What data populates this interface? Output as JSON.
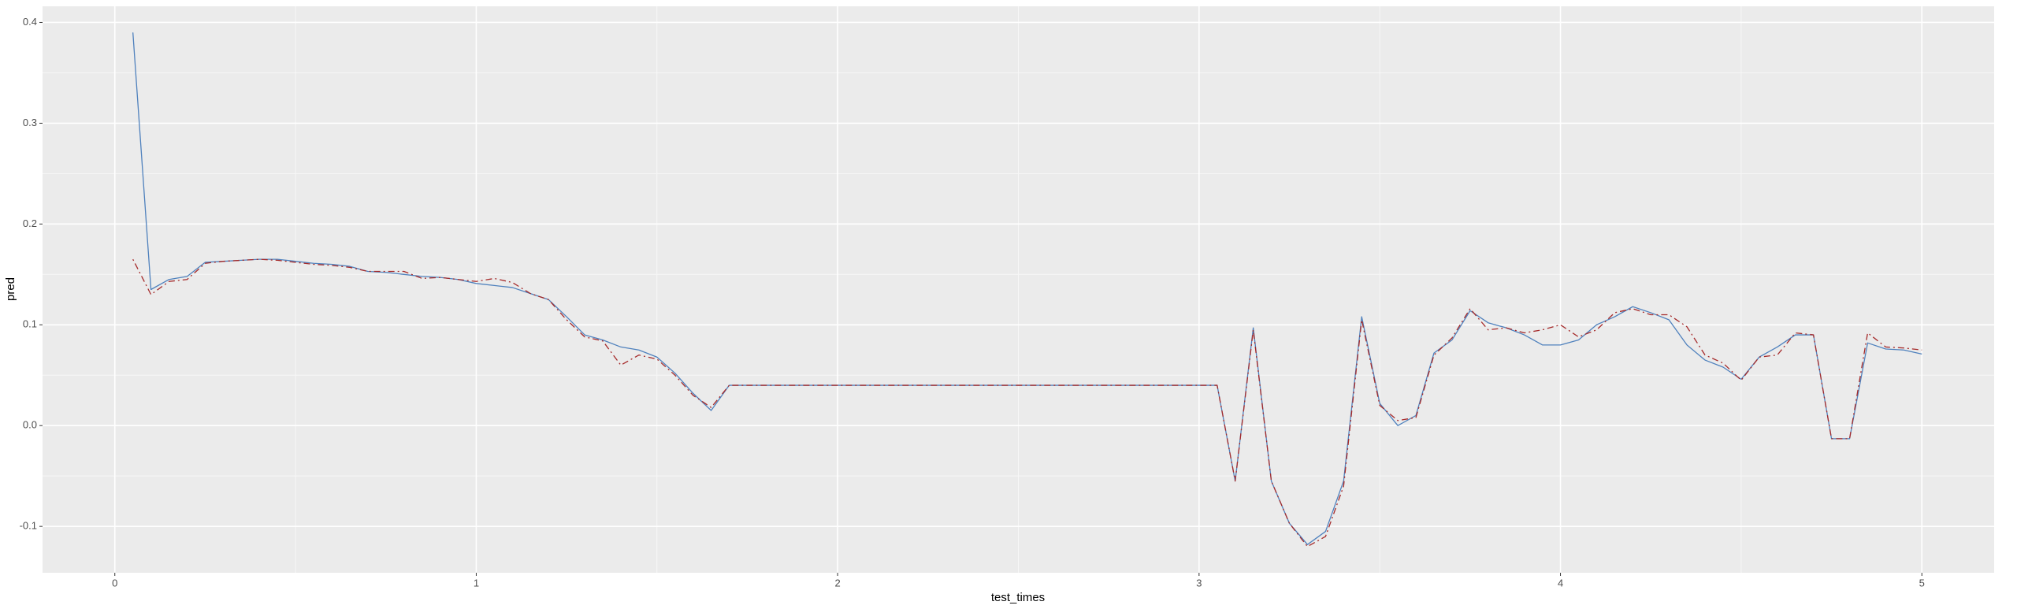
{
  "chart_data": {
    "type": "line",
    "x_label": "test_times",
    "y_label": "pred",
    "x": [
      0.05,
      0.1,
      0.15,
      0.2,
      0.25,
      0.3,
      0.35,
      0.4,
      0.45,
      0.5,
      0.55,
      0.6,
      0.65,
      0.7,
      0.75,
      0.8,
      0.85,
      0.9,
      0.95,
      1,
      1.05,
      1.1,
      1.15,
      1.2,
      1.25,
      1.3,
      1.35,
      1.4,
      1.45,
      1.5,
      1.55,
      1.6,
      1.65,
      1.7,
      1.75,
      1.8,
      1.85,
      1.9,
      1.95,
      2,
      2.05,
      2.1,
      2.15,
      2.2,
      2.25,
      2.3,
      2.35,
      2.4,
      2.45,
      2.5,
      2.55,
      2.6,
      2.65,
      2.7,
      2.75,
      2.8,
      2.85,
      2.9,
      2.95,
      3,
      3.05,
      3.1,
      3.15,
      3.2,
      3.25,
      3.3,
      3.35,
      3.4,
      3.45,
      3.5,
      3.55,
      3.6,
      3.65,
      3.7,
      3.75,
      3.8,
      3.85,
      3.9,
      3.95,
      4,
      4.05,
      4.1,
      4.15,
      4.2,
      4.25,
      4.3,
      4.35,
      4.4,
      4.45,
      4.5,
      4.55,
      4.6,
      4.65,
      4.7,
      4.75,
      4.8,
      4.85,
      4.9,
      4.95,
      5
    ],
    "series": [
      {
        "color": "#4f81bd",
        "dash": "solid",
        "values": [
          0.39,
          0.135,
          0.145,
          0.148,
          0.162,
          0.163,
          0.164,
          0.165,
          0.165,
          0.163,
          0.161,
          0.16,
          0.158,
          0.153,
          0.152,
          0.15,
          0.148,
          0.147,
          0.145,
          0.141,
          0.139,
          0.137,
          0.131,
          0.125,
          0.108,
          0.09,
          0.085,
          0.078,
          0.075,
          0.068,
          0.052,
          0.032,
          0.015,
          0.04,
          0.04,
          0.04,
          0.04,
          0.04,
          0.04,
          0.04,
          0.04,
          0.04,
          0.04,
          0.04,
          0.04,
          0.04,
          0.04,
          0.04,
          0.04,
          0.04,
          0.04,
          0.04,
          0.04,
          0.04,
          0.04,
          0.04,
          0.04,
          0.04,
          0.04,
          0.04,
          0.04,
          -0.055,
          0.097,
          -0.055,
          -0.097,
          -0.118,
          -0.105,
          -0.055,
          0.108,
          0.022,
          0,
          0.01,
          0.072,
          0.085,
          0.114,
          0.102,
          0.097,
          0.09,
          0.08,
          0.08,
          0.085,
          0.1,
          0.108,
          0.118,
          0.112,
          0.105,
          0.08,
          0.065,
          0.058,
          0.046,
          0.068,
          0.078,
          0.09,
          0.09,
          -0.013,
          -0.013,
          0.082,
          0.076,
          0.075,
          0.071
        ]
      },
      {
        "color": "#a52a2a",
        "dash": "dotdash",
        "values": [
          0.165,
          0.13,
          0.143,
          0.145,
          0.161,
          0.163,
          0.164,
          0.165,
          0.164,
          0.162,
          0.16,
          0.159,
          0.157,
          0.153,
          0.153,
          0.153,
          0.146,
          0.147,
          0.145,
          0.143,
          0.146,
          0.142,
          0.131,
          0.125,
          0.105,
          0.088,
          0.084,
          0.06,
          0.07,
          0.066,
          0.05,
          0.03,
          0.018,
          0.04,
          0.04,
          0.04,
          0.04,
          0.04,
          0.04,
          0.04,
          0.04,
          0.04,
          0.04,
          0.04,
          0.04,
          0.04,
          0.04,
          0.04,
          0.04,
          0.04,
          0.04,
          0.04,
          0.04,
          0.04,
          0.04,
          0.04,
          0.04,
          0.04,
          0.04,
          0.04,
          0.04,
          -0.055,
          0.095,
          -0.055,
          -0.097,
          -0.12,
          -0.11,
          -0.06,
          0.105,
          0.02,
          0.005,
          0.008,
          0.07,
          0.087,
          0.116,
          0.095,
          0.097,
          0.092,
          0.095,
          0.1,
          0.088,
          0.095,
          0.112,
          0.116,
          0.11,
          0.11,
          0.098,
          0.07,
          0.062,
          0.045,
          0.068,
          0.07,
          0.092,
          0.09,
          -0.013,
          -0.013,
          0.092,
          0.078,
          0.077,
          0.075
        ]
      }
    ],
    "xlim": [
      -0.2,
      5.2
    ],
    "xticks": [
      0,
      1,
      2,
      3,
      4,
      5
    ],
    "ylim": [
      -0.146,
      0.416
    ],
    "yticks": [
      -0.1,
      {
        "value": 0,
        "label": "0.0"
      },
      0.1,
      0.2,
      0.3,
      0.4
    ],
    "grid": true,
    "minor_grid": true,
    "panel_color": "#ebebeb"
  }
}
